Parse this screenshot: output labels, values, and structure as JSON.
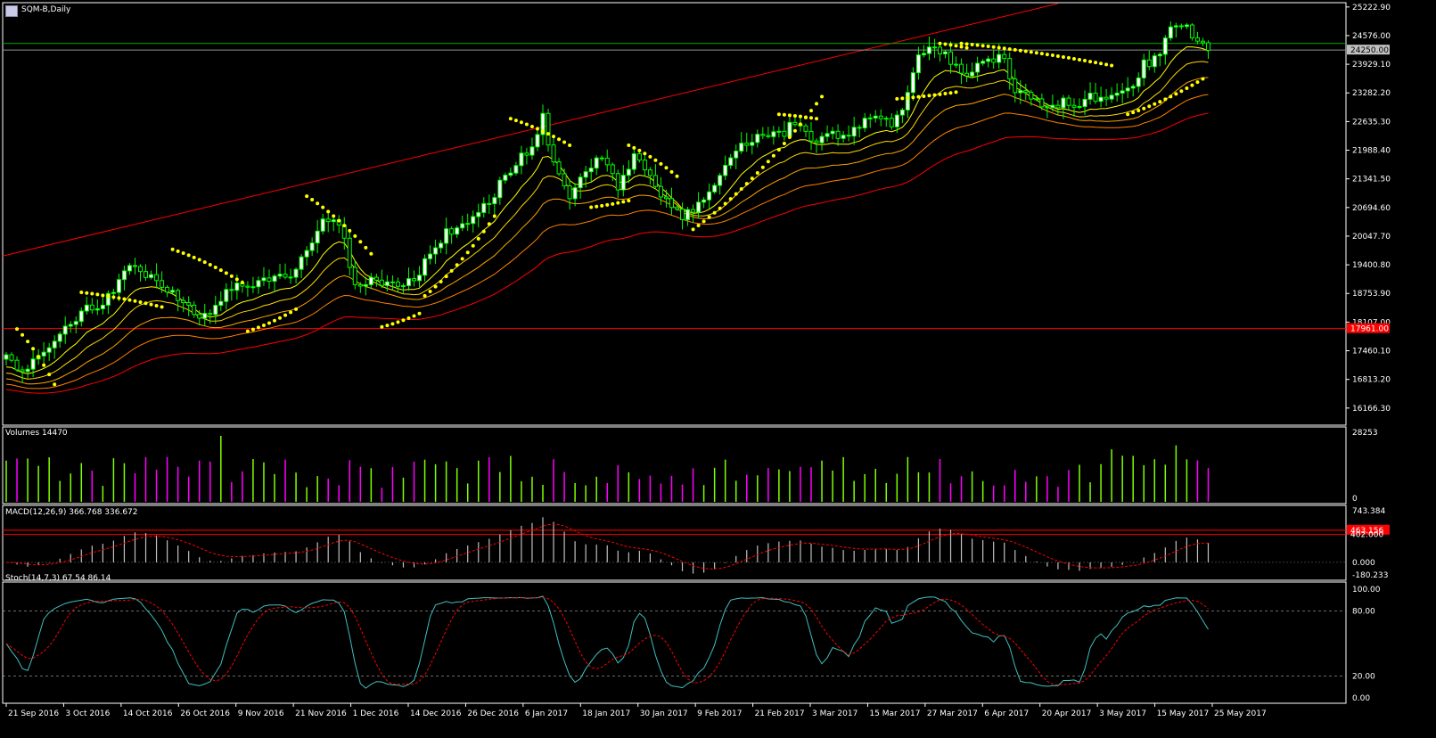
{
  "window": {
    "title": "SQM-B,Daily"
  },
  "panels": {
    "volume_label": "Volumes 14470",
    "macd_label": "MACD(12,26,9) 366.768 336.672",
    "stoch_label": "Stoch(14,7,3) 67.54 86.14"
  },
  "colors": {
    "background": "#000000",
    "bull": "#00ff00",
    "bear": "#ffffff",
    "volume_up": "#7fff00",
    "volume_down": "#ff00ff",
    "sar": "#ffff00",
    "red": "#ff0000",
    "stoch_main": "#40c0c0",
    "axis": "#ffffff"
  },
  "chart_data": [
    {
      "type": "candlestick",
      "name": "price",
      "y_ticks": [
        "25222.90",
        "24576.00",
        "23929.10",
        "23282.20",
        "22635.30",
        "21988.40",
        "21341.50",
        "20694.60",
        "20047.70",
        "19400.80",
        "18753.90",
        "18107.00",
        "17460.10",
        "16813.20",
        "16166.30"
      ],
      "ylim": [
        15780,
        25320
      ],
      "x_ticks": [
        "21 Sep 2016",
        "3 Oct 2016",
        "14 Oct 2016",
        "26 Oct 2016",
        "9 Nov 2016",
        "21 Nov 2016",
        "1 Dec 2016",
        "14 Dec 2016",
        "26 Dec 2016",
        "6 Jan 2017",
        "18 Jan 2017",
        "30 Jan 2017",
        "9 Feb 2017",
        "21 Feb 2017",
        "3 Mar 2017",
        "15 Mar 2017",
        "27 Mar 2017",
        "6 Apr 2017",
        "20 Apr 2017",
        "3 May 2017",
        "15 May 2017",
        "25 May 2017"
      ],
      "current_price_label": "24250.00",
      "hline_label": "17961.00",
      "close_anchors": [
        [
          0,
          17300
        ],
        [
          3,
          17000
        ],
        [
          6,
          17400
        ],
        [
          9,
          17750
        ],
        [
          12,
          18100
        ],
        [
          15,
          18450
        ],
        [
          18,
          18500
        ],
        [
          21,
          19000
        ],
        [
          23,
          19300
        ],
        [
          26,
          19200
        ],
        [
          29,
          18950
        ],
        [
          32,
          18700
        ],
        [
          35,
          18250
        ],
        [
          38,
          18300
        ],
        [
          41,
          18900
        ],
        [
          44,
          18950
        ],
        [
          47,
          19000
        ],
        [
          50,
          19100
        ],
        [
          53,
          19200
        ],
        [
          56,
          19700
        ],
        [
          59,
          20400
        ],
        [
          61,
          20500
        ],
        [
          63,
          19900
        ],
        [
          65,
          18900
        ],
        [
          68,
          19100
        ],
        [
          71,
          19000
        ],
        [
          74,
          18900
        ],
        [
          77,
          19250
        ],
        [
          80,
          19900
        ],
        [
          83,
          20200
        ],
        [
          86,
          20400
        ],
        [
          89,
          20700
        ],
        [
          92,
          21200
        ],
        [
          95,
          21700
        ],
        [
          98,
          22000
        ],
        [
          100,
          22700
        ],
        [
          102,
          21600
        ],
        [
          105,
          21000
        ],
        [
          108,
          21500
        ],
        [
          111,
          21800
        ],
        [
          114,
          21200
        ],
        [
          117,
          21800
        ],
        [
          120,
          21500
        ],
        [
          123,
          20800
        ],
        [
          126,
          20500
        ],
        [
          129,
          20700
        ],
        [
          132,
          21300
        ],
        [
          135,
          21700
        ],
        [
          138,
          22200
        ],
        [
          141,
          22400
        ],
        [
          144,
          22300
        ],
        [
          147,
          22600
        ],
        [
          150,
          22200
        ],
        [
          153,
          22400
        ],
        [
          156,
          22300
        ],
        [
          159,
          22500
        ],
        [
          162,
          22800
        ],
        [
          165,
          22600
        ],
        [
          167,
          22900
        ],
        [
          170,
          24100
        ],
        [
          173,
          24250
        ],
        [
          176,
          24000
        ],
        [
          179,
          23700
        ],
        [
          182,
          23900
        ],
        [
          185,
          24200
        ],
        [
          188,
          23400
        ],
        [
          191,
          23200
        ],
        [
          194,
          23000
        ],
        [
          197,
          23100
        ],
        [
          200,
          23050
        ],
        [
          203,
          23200
        ],
        [
          206,
          23100
        ],
        [
          209,
          23300
        ],
        [
          212,
          23900
        ],
        [
          215,
          24200
        ],
        [
          218,
          24900
        ],
        [
          221,
          24600
        ],
        [
          223,
          24300
        ],
        [
          224,
          24250
        ]
      ],
      "ma_periods": [
        13,
        21,
        34,
        55,
        89
      ],
      "sar_segments": [
        {
          "x": [
            2,
            9
          ],
          "y": [
            17950,
            16700
          ]
        },
        {
          "x": [
            14,
            29
          ],
          "y": [
            18780,
            18450
          ]
        },
        {
          "x": [
            31,
            44
          ],
          "y": [
            19750,
            19000
          ]
        },
        {
          "x": [
            45,
            54
          ],
          "y": [
            17900,
            18400
          ]
        },
        {
          "x": [
            56,
            68
          ],
          "y": [
            20950,
            19650
          ]
        },
        {
          "x": [
            70,
            77
          ],
          "y": [
            18000,
            18300
          ]
        },
        {
          "x": [
            78,
            91
          ],
          "y": [
            18700,
            20500
          ]
        },
        {
          "x": [
            94,
            105
          ],
          "y": [
            22700,
            22100
          ]
        },
        {
          "x": [
            109,
            116
          ],
          "y": [
            20700,
            20850
          ]
        },
        {
          "x": [
            116,
            125
          ],
          "y": [
            22100,
            21400
          ]
        },
        {
          "x": [
            128,
            152
          ],
          "y": [
            20200,
            23200
          ]
        },
        {
          "x": [
            144,
            151
          ],
          "y": [
            22800,
            22700
          ]
        },
        {
          "x": [
            166,
            177
          ],
          "y": [
            23150,
            23300
          ]
        },
        {
          "x": [
            174,
            179
          ],
          "y": [
            24400,
            24300
          ]
        },
        {
          "x": [
            178,
            206
          ],
          "y": [
            24400,
            23900
          ]
        },
        {
          "x": [
            209,
            223
          ],
          "y": [
            22800,
            23600
          ]
        }
      ],
      "trendline": {
        "x": [
          0,
          196
        ],
        "y": [
          19600,
          25300
        ]
      },
      "hline_value": 17961
    },
    {
      "type": "bar",
      "name": "volume",
      "ylim": [
        0,
        28253
      ],
      "y_ticks": [
        "28253",
        "0"
      ],
      "last_value": 14470
    },
    {
      "type": "bar+line",
      "name": "MACD(12,26,9)",
      "ylim": [
        -180.233,
        743.384
      ],
      "y_ticks": [
        "743.384",
        "0.000",
        "-180.233"
      ],
      "macd": 366.768,
      "signal": 336.672,
      "level_labels": [
        "463.156",
        "402.000"
      ],
      "levels": [
        463.156,
        402.0
      ]
    },
    {
      "type": "line",
      "name": "Stoch(14,7,3)",
      "ylim": [
        0,
        100
      ],
      "y_ticks": [
        "100.00",
        "80.00",
        "20.00",
        "0.00"
      ],
      "main": 67.54,
      "signal": 86.14,
      "levels": [
        80,
        20
      ]
    }
  ]
}
